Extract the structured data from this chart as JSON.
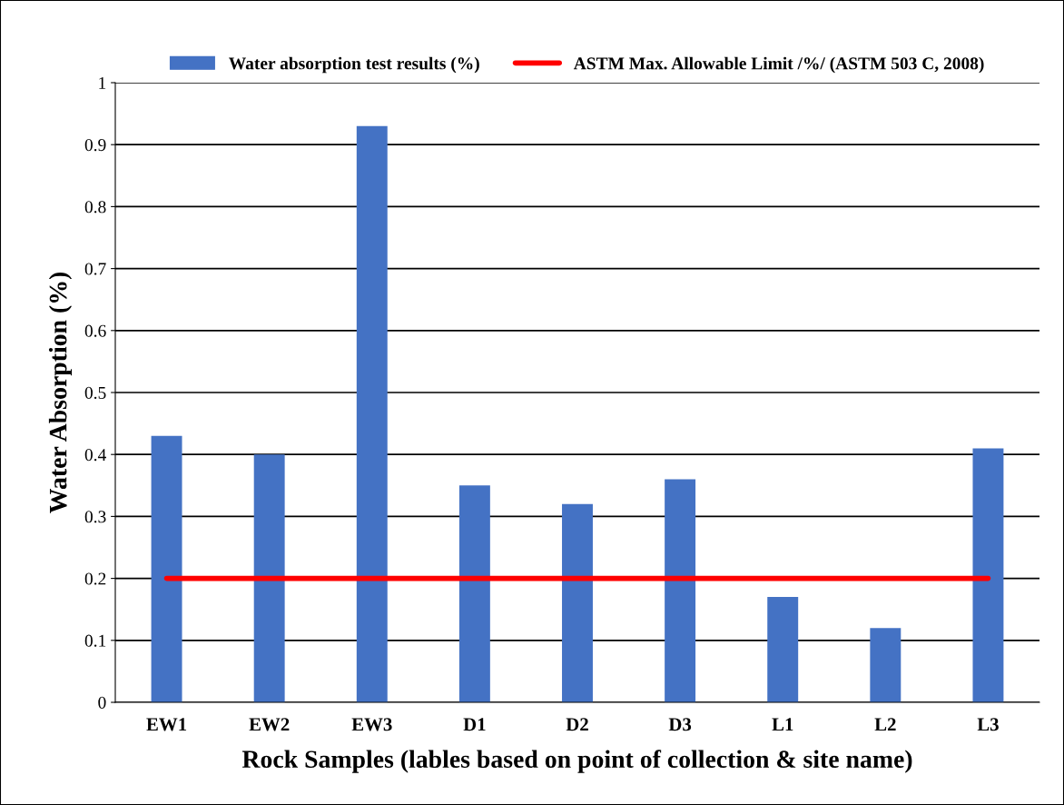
{
  "chart_data": {
    "type": "bar",
    "xlabel": "Rock Samples (lables based on point of collection & site name)",
    "ylabel": "Water Absorption (%)",
    "categories": [
      "EW1",
      "EW2",
      "EW3",
      "D1",
      "D2",
      "D3",
      "L1",
      "L2",
      "L3"
    ],
    "series": [
      {
        "name": "Water absorption test results (%)",
        "color": "#4472c4",
        "values": [
          0.43,
          0.4,
          0.93,
          0.35,
          0.32,
          0.36,
          0.17,
          0.12,
          0.41
        ]
      },
      {
        "name": "ASTM Max. Allowable Limit /%/ (ASTM 503 C, 2008)",
        "type": "line",
        "color": "#ff0000",
        "values": [
          0.2,
          0.2,
          0.2,
          0.2,
          0.2,
          0.2,
          0.2,
          0.2,
          0.2
        ]
      }
    ],
    "ylim": [
      0,
      1
    ],
    "yticks": [
      0,
      0.1,
      0.2,
      0.3,
      0.4,
      0.5,
      0.6,
      0.7,
      0.8,
      0.9,
      1
    ],
    "grid": "y",
    "legend": "top"
  }
}
